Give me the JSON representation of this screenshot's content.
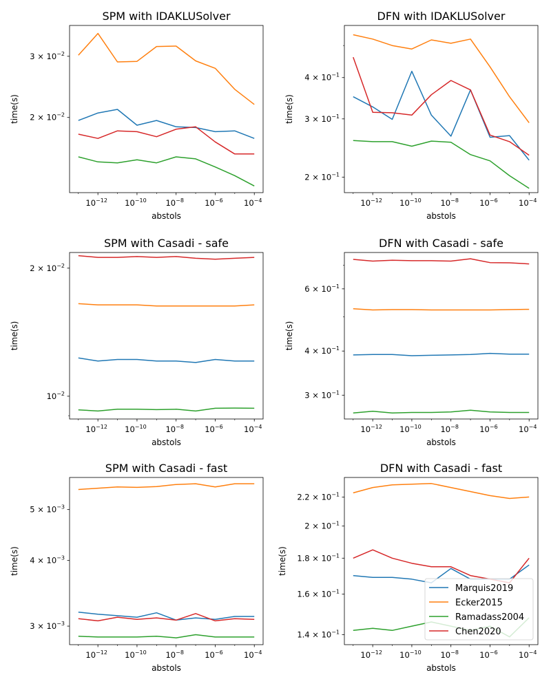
{
  "figure": {
    "legend": {
      "location": "lower-right",
      "subplot": 5,
      "entries": [
        "Marquis2019",
        "Ecker2015",
        "Ramadass2004",
        "Chen2020"
      ]
    }
  },
  "chart_data": [
    {
      "type": "line",
      "title": "SPM with IDAKLUSolver",
      "xlabel": "abstols",
      "ylabel": "time(s)",
      "xscale": "log",
      "yscale": "log",
      "x": [
        1e-13,
        1e-12,
        1e-11,
        1e-10,
        1e-09,
        1e-08,
        1e-07,
        1e-06,
        1e-05,
        0.0001
      ],
      "xticks": [
        {
          "value": 1e-12,
          "base": "10",
          "exp": "−12"
        },
        {
          "value": 1e-10,
          "base": "10",
          "exp": "−10"
        },
        {
          "value": 1e-08,
          "base": "10",
          "exp": "−8"
        },
        {
          "value": 1e-06,
          "base": "10",
          "exp": "−6"
        },
        {
          "value": 0.0001,
          "base": "10",
          "exp": "−4"
        }
      ],
      "yticks": [
        {
          "value": 0.02,
          "base": "2 × 10",
          "exp": "−2"
        },
        {
          "value": 0.03,
          "base": "3 × 10",
          "exp": "−2"
        }
      ],
      "yminor": [],
      "ylim": [
        0.01215,
        0.0368
      ],
      "grid": false,
      "series": [
        {
          "name": "Marquis2019",
          "color": "#1f77b4",
          "values": [
            0.0196,
            0.0206,
            0.0211,
            0.019,
            0.0196,
            0.0188,
            0.0187,
            0.0182,
            0.0183,
            0.0174
          ]
        },
        {
          "name": "Ecker2015",
          "color": "#ff7f0e",
          "values": [
            0.0302,
            0.0349,
            0.0289,
            0.029,
            0.032,
            0.0321,
            0.0291,
            0.0277,
            0.0241,
            0.0218
          ]
        },
        {
          "name": "Ramadass2004",
          "color": "#2ca02c",
          "values": [
            0.0154,
            0.0149,
            0.0148,
            0.0151,
            0.0148,
            0.0154,
            0.0152,
            0.0144,
            0.0136,
            0.0127
          ]
        },
        {
          "name": "Chen2020",
          "color": "#d62728",
          "values": [
            0.0179,
            0.0174,
            0.0183,
            0.0182,
            0.0176,
            0.0185,
            0.0188,
            0.017,
            0.0157,
            0.0157
          ]
        }
      ]
    },
    {
      "type": "line",
      "title": "DFN with IDAKLUSolver",
      "xlabel": "abstols",
      "ylabel": "time(s)",
      "xscale": "log",
      "yscale": "log",
      "x": [
        1e-13,
        1e-12,
        1e-11,
        1e-10,
        1e-09,
        1e-08,
        1e-07,
        1e-06,
        1e-05,
        0.0001
      ],
      "xticks": [
        {
          "value": 1e-12,
          "base": "10",
          "exp": "−12"
        },
        {
          "value": 1e-10,
          "base": "10",
          "exp": "−10"
        },
        {
          "value": 1e-08,
          "base": "10",
          "exp": "−8"
        },
        {
          "value": 1e-06,
          "base": "10",
          "exp": "−6"
        },
        {
          "value": 0.0001,
          "base": "10",
          "exp": "−4"
        }
      ],
      "yticks": [
        {
          "value": 0.2,
          "base": "2 × 10",
          "exp": "−1"
        },
        {
          "value": 0.3,
          "base": "3 × 10",
          "exp": "−1"
        },
        {
          "value": 0.4,
          "base": "4 × 10",
          "exp": "−1"
        }
      ],
      "yminor": [
        0.5
      ],
      "ylim": [
        0.1795,
        0.575
      ],
      "grid": false,
      "series": [
        {
          "name": "Marquis2019",
          "color": "#1f77b4",
          "values": [
            0.35,
            0.326,
            0.299,
            0.418,
            0.308,
            0.266,
            0.367,
            0.264,
            0.267,
            0.225
          ]
        },
        {
          "name": "Ecker2015",
          "color": "#ff7f0e",
          "values": [
            0.539,
            0.523,
            0.5,
            0.488,
            0.52,
            0.508,
            0.523,
            0.431,
            0.35,
            0.292
          ]
        },
        {
          "name": "Ramadass2004",
          "color": "#2ca02c",
          "values": [
            0.258,
            0.256,
            0.256,
            0.248,
            0.257,
            0.255,
            0.234,
            0.224,
            0.202,
            0.185
          ]
        },
        {
          "name": "Chen2020",
          "color": "#d62728",
          "values": [
            0.461,
            0.314,
            0.313,
            0.308,
            0.355,
            0.392,
            0.367,
            0.268,
            0.256,
            0.233
          ]
        }
      ]
    },
    {
      "type": "line",
      "title": "SPM with Casadi - safe",
      "xlabel": "abstols",
      "ylabel": "time(s)",
      "xscale": "log",
      "yscale": "log",
      "x": [
        1e-13,
        1e-12,
        1e-11,
        1e-10,
        1e-09,
        1e-08,
        1e-07,
        1e-06,
        1e-05,
        0.0001
      ],
      "xticks": [
        {
          "value": 1e-12,
          "base": "10",
          "exp": "−12"
        },
        {
          "value": 1e-10,
          "base": "10",
          "exp": "−10"
        },
        {
          "value": 1e-08,
          "base": "10",
          "exp": "−8"
        },
        {
          "value": 1e-06,
          "base": "10",
          "exp": "−6"
        },
        {
          "value": 0.0001,
          "base": "10",
          "exp": "−4"
        }
      ],
      "yticks": [
        {
          "value": 0.01,
          "base": "10",
          "exp": "−2"
        },
        {
          "value": 0.02,
          "base": "2 × 10",
          "exp": "−2"
        }
      ],
      "yminor": [
        0.009
      ],
      "ylim": [
        0.00884,
        0.02177
      ],
      "grid": false,
      "series": [
        {
          "name": "Marquis2019",
          "color": "#1f77b4",
          "values": [
            0.0123,
            0.0121,
            0.0122,
            0.0122,
            0.0121,
            0.0121,
            0.012,
            0.0122,
            0.0121,
            0.0121
          ]
        },
        {
          "name": "Ecker2015",
          "color": "#ff7f0e",
          "values": [
            0.0165,
            0.0164,
            0.0164,
            0.0164,
            0.0163,
            0.0163,
            0.0163,
            0.0163,
            0.0163,
            0.0164
          ]
        },
        {
          "name": "Ramadass2004",
          "color": "#2ca02c",
          "values": [
            0.00929,
            0.00923,
            0.00932,
            0.00932,
            0.0093,
            0.00932,
            0.00923,
            0.00937,
            0.00938,
            0.00937
          ]
        },
        {
          "name": "Chen2020",
          "color": "#d62728",
          "values": [
            0.0214,
            0.0212,
            0.0212,
            0.0213,
            0.0212,
            0.0213,
            0.0211,
            0.021,
            0.0211,
            0.0212
          ]
        }
      ]
    },
    {
      "type": "line",
      "title": "DFN with Casadi - safe",
      "xlabel": "abstols",
      "ylabel": "time(s)",
      "xscale": "log",
      "yscale": "log",
      "x": [
        1e-13,
        1e-12,
        1e-11,
        1e-10,
        1e-09,
        1e-08,
        1e-07,
        1e-06,
        1e-05,
        0.0001
      ],
      "xticks": [
        {
          "value": 1e-12,
          "base": "10",
          "exp": "−12"
        },
        {
          "value": 1e-10,
          "base": "10",
          "exp": "−10"
        },
        {
          "value": 1e-08,
          "base": "10",
          "exp": "−8"
        },
        {
          "value": 1e-06,
          "base": "10",
          "exp": "−6"
        },
        {
          "value": 0.0001,
          "base": "10",
          "exp": "−4"
        }
      ],
      "yticks": [
        {
          "value": 0.3,
          "base": "3 × 10",
          "exp": "−1"
        },
        {
          "value": 0.4,
          "base": "4 × 10",
          "exp": "−1"
        },
        {
          "value": 0.6,
          "base": "6 × 10",
          "exp": "−1"
        }
      ],
      "yminor": [
        0.5,
        0.7
      ],
      "ylim": [
        0.2568,
        0.7605
      ],
      "grid": false,
      "series": [
        {
          "name": "Marquis2019",
          "color": "#1f77b4",
          "values": [
            0.39,
            0.391,
            0.391,
            0.388,
            0.389,
            0.39,
            0.391,
            0.394,
            0.392,
            0.392
          ]
        },
        {
          "name": "Ecker2015",
          "color": "#ff7f0e",
          "values": [
            0.527,
            0.523,
            0.524,
            0.524,
            0.523,
            0.523,
            0.523,
            0.523,
            0.524,
            0.525
          ]
        },
        {
          "name": "Ramadass2004",
          "color": "#2ca02c",
          "values": [
            0.267,
            0.27,
            0.267,
            0.268,
            0.268,
            0.269,
            0.272,
            0.269,
            0.268,
            0.268
          ]
        },
        {
          "name": "Chen2020",
          "color": "#d62728",
          "values": [
            0.727,
            0.719,
            0.723,
            0.721,
            0.721,
            0.719,
            0.73,
            0.712,
            0.711,
            0.706
          ]
        }
      ]
    },
    {
      "type": "line",
      "title": "SPM with Casadi - fast",
      "xlabel": "abstols",
      "ylabel": "time(s)",
      "xscale": "log",
      "yscale": "log",
      "x": [
        1e-13,
        1e-12,
        1e-11,
        1e-10,
        1e-09,
        1e-08,
        1e-07,
        1e-06,
        1e-05,
        0.0001
      ],
      "xticks": [
        {
          "value": 1e-12,
          "base": "10",
          "exp": "−12"
        },
        {
          "value": 1e-10,
          "base": "10",
          "exp": "−10"
        },
        {
          "value": 1e-08,
          "base": "10",
          "exp": "−8"
        },
        {
          "value": 1e-06,
          "base": "10",
          "exp": "−6"
        },
        {
          "value": 0.0001,
          "base": "10",
          "exp": "−4"
        }
      ],
      "yticks": [
        {
          "value": 0.003,
          "base": "3 × 10",
          "exp": "−3"
        },
        {
          "value": 0.004,
          "base": "4 × 10",
          "exp": "−3"
        },
        {
          "value": 0.005,
          "base": "5 × 10",
          "exp": "−3"
        }
      ],
      "yminor": [],
      "ylim": [
        0.002766,
        0.005755
      ],
      "grid": false,
      "series": [
        {
          "name": "Marquis2019",
          "color": "#1f77b4",
          "values": [
            0.00319,
            0.00316,
            0.00314,
            0.00312,
            0.00318,
            0.00308,
            0.00311,
            0.00309,
            0.00313,
            0.00313
          ]
        },
        {
          "name": "Ecker2015",
          "color": "#ff7f0e",
          "values": [
            0.00546,
            0.00549,
            0.00552,
            0.00551,
            0.00553,
            0.00558,
            0.0056,
            0.00552,
            0.0056,
            0.0056
          ]
        },
        {
          "name": "Ramadass2004",
          "color": "#2ca02c",
          "values": [
            0.00287,
            0.00286,
            0.00286,
            0.00286,
            0.00287,
            0.00285,
            0.00289,
            0.00286,
            0.00286,
            0.00286
          ]
        },
        {
          "name": "Chen2020",
          "color": "#d62728",
          "values": [
            0.0031,
            0.00307,
            0.00312,
            0.00309,
            0.00311,
            0.00308,
            0.00317,
            0.00307,
            0.0031,
            0.00309
          ]
        }
      ]
    },
    {
      "type": "line",
      "title": "DFN with Casadi - fast",
      "xlabel": "abstols",
      "ylabel": "time(s)",
      "xscale": "log",
      "yscale": "log",
      "x": [
        1e-13,
        1e-12,
        1e-11,
        1e-10,
        1e-09,
        1e-08,
        1e-07,
        1e-06,
        1e-05,
        0.0001
      ],
      "xticks": [
        {
          "value": 1e-12,
          "base": "10",
          "exp": "−12"
        },
        {
          "value": 1e-10,
          "base": "10",
          "exp": "−10"
        },
        {
          "value": 1e-08,
          "base": "10",
          "exp": "−8"
        },
        {
          "value": 1e-06,
          "base": "10",
          "exp": "−6"
        },
        {
          "value": 0.0001,
          "base": "10",
          "exp": "−4"
        }
      ],
      "yticks": [
        {
          "value": 0.14,
          "base": "1.4 × 10",
          "exp": "−1"
        },
        {
          "value": 0.16,
          "base": "1.6 × 10",
          "exp": "−1"
        },
        {
          "value": 0.18,
          "base": "1.8 × 10",
          "exp": "−1"
        },
        {
          "value": 0.2,
          "base": "2 × 10",
          "exp": "−1"
        },
        {
          "value": 0.22,
          "base": "2.2 × 10",
          "exp": "−1"
        }
      ],
      "yminor": [],
      "ylim": [
        0.1355,
        0.2346
      ],
      "grid": false,
      "series": [
        {
          "name": "Marquis2019",
          "color": "#1f77b4",
          "values": [
            0.17,
            0.169,
            0.169,
            0.168,
            0.166,
            0.174,
            0.168,
            0.168,
            0.168,
            0.176
          ]
        },
        {
          "name": "Ecker2015",
          "color": "#ff7f0e",
          "values": [
            0.223,
            0.227,
            0.229,
            0.2295,
            0.23,
            0.227,
            0.224,
            0.221,
            0.219,
            0.22
          ]
        },
        {
          "name": "Ramadass2004",
          "color": "#2ca02c",
          "values": [
            0.142,
            0.143,
            0.142,
            0.144,
            0.146,
            0.144,
            0.142,
            0.144,
            0.139,
            0.148
          ]
        },
        {
          "name": "Chen2020",
          "color": "#d62728",
          "values": [
            0.18,
            0.185,
            0.18,
            0.177,
            0.175,
            0.175,
            0.17,
            0.168,
            0.166,
            0.18
          ]
        }
      ]
    }
  ]
}
